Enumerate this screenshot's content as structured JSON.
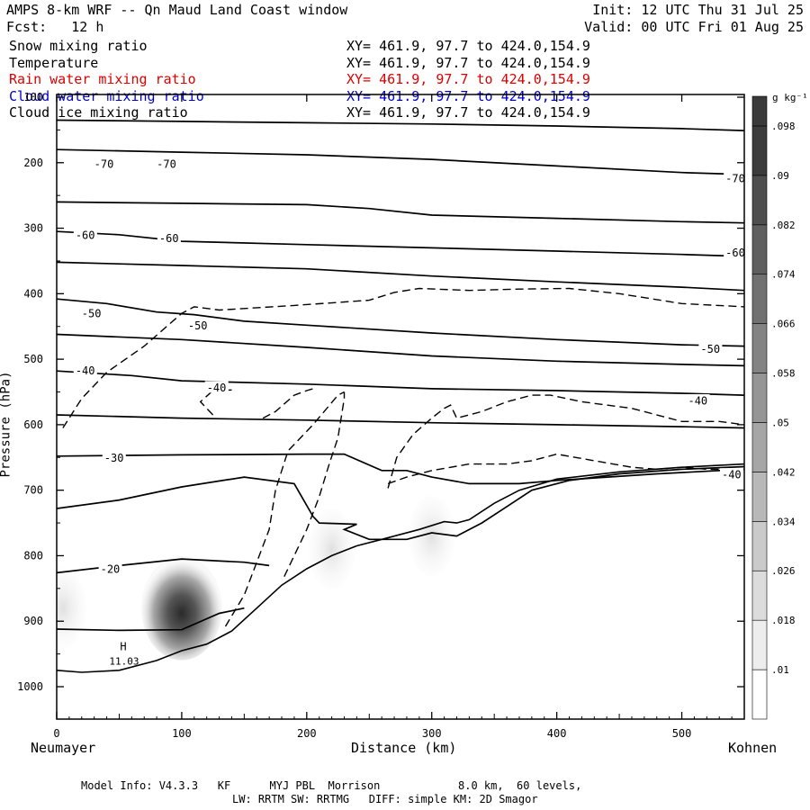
{
  "header": {
    "title": "AMPS 8-km WRF -- Qn Maud Land Coast window",
    "forecast": "Fcst:   12 h",
    "init": "Init: 12 UTC Thu 31 Jul 25",
    "valid": "Valid: 00 UTC Fri 01 Aug 25"
  },
  "fields": [
    {
      "name": "Snow mixing ratio",
      "xy": "XY= 461.9, 97.7 to 424.0,154.9",
      "color": "#000000"
    },
    {
      "name": "Temperature",
      "xy": "XY= 461.9, 97.7 to 424.0,154.9",
      "color": "#000000"
    },
    {
      "name": "Rain water mixing ratio",
      "xy": "XY= 461.9, 97.7 to 424.0,154.9",
      "color": "#dd0000"
    },
    {
      "name": "Cloud water mixing ratio",
      "xy": "XY= 461.9, 97.7 to 424.0,154.9",
      "color": "#0000cc"
    },
    {
      "name": "Cloud ice mixing ratio",
      "xy": "XY= 461.9, 97.7 to 424.0,154.9",
      "color": "#000000"
    }
  ],
  "footer": {
    "line1": "Model Info: V4.3.3   KF      MYJ PBL  Morrison            8.0 km,  60 levels,",
    "line2": "LW: RRTM SW: RRTMG   DIFF: simple KM: 2D Smagor"
  },
  "chart_data": {
    "type": "cross-section",
    "xlabel": "Distance (km)",
    "ylabel": "Pressure (hPa)",
    "xlim": [
      0,
      550
    ],
    "ylim": [
      1050,
      100
    ],
    "x_ticks": [
      0,
      100,
      200,
      300,
      400,
      500
    ],
    "y_ticks": [
      100,
      200,
      300,
      400,
      500,
      600,
      700,
      800,
      900,
      1000
    ],
    "left_endpoint": "Neumayer",
    "right_endpoint": "Kohnen",
    "colorbar": {
      "unit": "g kg⁻¹",
      "levels": [
        0.01,
        0.018,
        0.026,
        0.034,
        0.042,
        0.05,
        0.058,
        0.066,
        0.074,
        0.082,
        0.09,
        0.098
      ],
      "labels": [
        ".01",
        ".018",
        ".026",
        ".034",
        ".042",
        ".05",
        ".058",
        ".066",
        ".074",
        ".082",
        ".09",
        ".098"
      ]
    },
    "pressure_high": {
      "label": "H",
      "value": "11.03",
      "x": 42,
      "p": 955
    },
    "temperature_labels": [
      {
        "text": "-70",
        "x": 30,
        "p": 202
      },
      {
        "text": "-70",
        "x": 80,
        "p": 202
      },
      {
        "text": "-70",
        "x": 535,
        "p": 224
      },
      {
        "text": "-60",
        "x": 15,
        "p": 310
      },
      {
        "text": "-60",
        "x": 82,
        "p": 315
      },
      {
        "text": "-60",
        "x": 535,
        "p": 337
      },
      {
        "text": "-50",
        "x": 20,
        "p": 430
      },
      {
        "text": "-50",
        "x": 105,
        "p": 448
      },
      {
        "text": "-50",
        "x": 515,
        "p": 484
      },
      {
        "text": "-40",
        "x": 15,
        "p": 517
      },
      {
        "text": "-40",
        "x": 120,
        "p": 543
      },
      {
        "text": "-40",
        "x": 505,
        "p": 563
      },
      {
        "text": "-40",
        "x": 532,
        "p": 676
      },
      {
        "text": "-30",
        "x": 38,
        "p": 650
      },
      {
        "text": "-20",
        "x": 35,
        "p": 820
      }
    ],
    "isotherms": [
      {
        "level": -70,
        "points": [
          [
            0,
            135
          ],
          [
            100,
            137
          ],
          [
            200,
            139
          ],
          [
            300,
            141
          ],
          [
            400,
            144
          ],
          [
            500,
            148
          ],
          [
            550,
            151
          ]
        ]
      },
      {
        "level": -70,
        "points": [
          [
            0,
            180
          ],
          [
            100,
            184
          ],
          [
            200,
            188
          ],
          [
            300,
            195
          ],
          [
            400,
            205
          ],
          [
            500,
            215
          ],
          [
            550,
            218
          ]
        ]
      },
      {
        "level": -60,
        "points": [
          [
            0,
            260
          ],
          [
            100,
            262
          ],
          [
            200,
            264
          ],
          [
            250,
            270
          ],
          [
            300,
            280
          ],
          [
            400,
            285
          ],
          [
            500,
            290
          ],
          [
            550,
            292
          ]
        ]
      },
      {
        "level": -60,
        "points": [
          [
            0,
            305
          ],
          [
            50,
            310
          ],
          [
            100,
            320
          ],
          [
            200,
            325
          ],
          [
            300,
            330
          ],
          [
            400,
            335
          ],
          [
            500,
            340
          ],
          [
            550,
            343
          ]
        ]
      },
      {
        "level": -50,
        "points": [
          [
            0,
            352
          ],
          [
            100,
            357
          ],
          [
            200,
            362
          ],
          [
            300,
            373
          ],
          [
            400,
            382
          ],
          [
            500,
            390
          ],
          [
            550,
            395
          ]
        ]
      },
      {
        "level": -50,
        "points": [
          [
            0,
            408
          ],
          [
            40,
            415
          ],
          [
            80,
            428
          ],
          [
            110,
            432
          ],
          [
            150,
            442
          ],
          [
            200,
            448
          ],
          [
            300,
            460
          ],
          [
            400,
            470
          ],
          [
            500,
            478
          ],
          [
            550,
            480
          ]
        ]
      },
      {
        "level": -50,
        "points": [
          [
            0,
            462
          ],
          [
            100,
            470
          ],
          [
            200,
            482
          ],
          [
            300,
            495
          ],
          [
            400,
            503
          ],
          [
            500,
            508
          ],
          [
            550,
            510
          ]
        ]
      },
      {
        "level": -40,
        "points": [
          [
            0,
            518
          ],
          [
            60,
            525
          ],
          [
            100,
            533
          ],
          [
            200,
            538
          ],
          [
            300,
            545
          ],
          [
            400,
            548
          ],
          [
            500,
            552
          ],
          [
            550,
            555
          ]
        ]
      },
      {
        "level": -40,
        "points": [
          [
            0,
            585
          ],
          [
            100,
            590
          ],
          [
            200,
            593
          ],
          [
            300,
            597
          ],
          [
            400,
            600
          ],
          [
            500,
            603
          ],
          [
            550,
            605
          ]
        ]
      },
      {
        "level": -30,
        "points": [
          [
            0,
            648
          ],
          [
            100,
            646
          ],
          [
            200,
            645
          ],
          [
            230,
            645
          ],
          [
            260,
            670
          ],
          [
            280,
            670
          ],
          [
            300,
            680
          ],
          [
            330,
            690
          ],
          [
            370,
            690
          ],
          [
            400,
            685
          ],
          [
            480,
            675
          ],
          [
            550,
            668
          ]
        ]
      },
      {
        "level": -20,
        "points": [
          [
            0,
            728
          ],
          [
            50,
            715
          ],
          [
            100,
            695
          ],
          [
            150,
            680
          ],
          [
            190,
            690
          ],
          [
            205,
            740
          ],
          [
            210,
            750
          ],
          [
            240,
            752
          ],
          [
            230,
            760
          ],
          [
            250,
            775
          ],
          [
            280,
            775
          ],
          [
            300,
            765
          ],
          [
            320,
            770
          ],
          [
            340,
            750
          ],
          [
            360,
            725
          ],
          [
            380,
            700
          ],
          [
            410,
            685
          ],
          [
            450,
            675
          ],
          [
            500,
            668
          ],
          [
            550,
            664
          ]
        ]
      },
      {
        "level": -20,
        "points": [
          [
            0,
            826
          ],
          [
            50,
            815
          ],
          [
            100,
            805
          ],
          [
            150,
            810
          ],
          [
            170,
            815
          ]
        ]
      },
      {
        "level": -10,
        "points": [
          [
            0,
            912
          ],
          [
            50,
            914
          ],
          [
            100,
            913
          ],
          [
            130,
            888
          ],
          [
            150,
            880
          ]
        ]
      }
    ],
    "dashed_contours": [
      {
        "points": [
          [
            5,
            605
          ],
          [
            20,
            560
          ],
          [
            40,
            520
          ],
          [
            70,
            480
          ],
          [
            100,
            430
          ],
          [
            110,
            420
          ],
          [
            130,
            425
          ],
          [
            190,
            418
          ],
          [
            250,
            410
          ],
          [
            270,
            398
          ],
          [
            290,
            392
          ],
          [
            330,
            395
          ],
          [
            370,
            393
          ],
          [
            410,
            392
          ],
          [
            450,
            400
          ],
          [
            500,
            415
          ],
          [
            550,
            420
          ]
        ]
      },
      {
        "points": [
          [
            125,
            585
          ],
          [
            115,
            565
          ],
          [
            125,
            548
          ],
          [
            140,
            547
          ]
        ]
      },
      {
        "points": [
          [
            165,
            590
          ],
          [
            175,
            580
          ],
          [
            190,
            555
          ],
          [
            200,
            548
          ],
          [
            205,
            545
          ]
        ]
      },
      {
        "points": [
          [
            135,
            908
          ],
          [
            150,
            860
          ],
          [
            160,
            810
          ],
          [
            170,
            760
          ],
          [
            175,
            700
          ],
          [
            185,
            640
          ],
          [
            205,
            600
          ],
          [
            225,
            555
          ],
          [
            230,
            550
          ]
        ]
      },
      {
        "points": [
          [
            182,
            832
          ],
          [
            190,
            800
          ],
          [
            200,
            760
          ],
          [
            210,
            710
          ],
          [
            218,
            660
          ],
          [
            225,
            620
          ],
          [
            230,
            560
          ],
          [
            230,
            550
          ]
        ]
      },
      {
        "points": [
          [
            265,
            697
          ],
          [
            272,
            650
          ],
          [
            285,
            615
          ],
          [
            300,
            590
          ],
          [
            310,
            575
          ],
          [
            315,
            570
          ],
          [
            320,
            590
          ],
          [
            340,
            580
          ],
          [
            360,
            565
          ],
          [
            380,
            555
          ],
          [
            395,
            555
          ],
          [
            420,
            565
          ],
          [
            460,
            575
          ],
          [
            500,
            595
          ],
          [
            530,
            595
          ],
          [
            550,
            600
          ]
        ]
      },
      {
        "points": [
          [
            265,
            690
          ],
          [
            280,
            680
          ],
          [
            300,
            670
          ],
          [
            330,
            660
          ],
          [
            360,
            660
          ],
          [
            380,
            655
          ],
          [
            400,
            645
          ],
          [
            430,
            655
          ],
          [
            460,
            665
          ],
          [
            480,
            668
          ],
          [
            500,
            665
          ],
          [
            520,
            668
          ],
          [
            540,
            668
          ]
        ]
      }
    ],
    "terrain": [
      [
        0,
        975
      ],
      [
        20,
        978
      ],
      [
        50,
        975
      ],
      [
        80,
        960
      ],
      [
        100,
        945
      ],
      [
        120,
        935
      ],
      [
        140,
        915
      ],
      [
        160,
        880
      ],
      [
        180,
        845
      ],
      [
        200,
        820
      ],
      [
        220,
        800
      ],
      [
        240,
        785
      ],
      [
        260,
        775
      ],
      [
        290,
        760
      ],
      [
        310,
        748
      ],
      [
        320,
        750
      ],
      [
        330,
        745
      ],
      [
        350,
        720
      ],
      [
        370,
        700
      ],
      [
        400,
        683
      ],
      [
        450,
        672
      ],
      [
        500,
        665
      ],
      [
        550,
        660
      ]
    ],
    "shading": [
      {
        "x": 100,
        "p": 880,
        "value": 0.098
      },
      {
        "x": 5,
        "p": 880,
        "value": 0.018
      },
      {
        "x": 220,
        "p": 790,
        "value": 0.018
      },
      {
        "x": 300,
        "p": 770,
        "value": 0.01
      }
    ]
  }
}
